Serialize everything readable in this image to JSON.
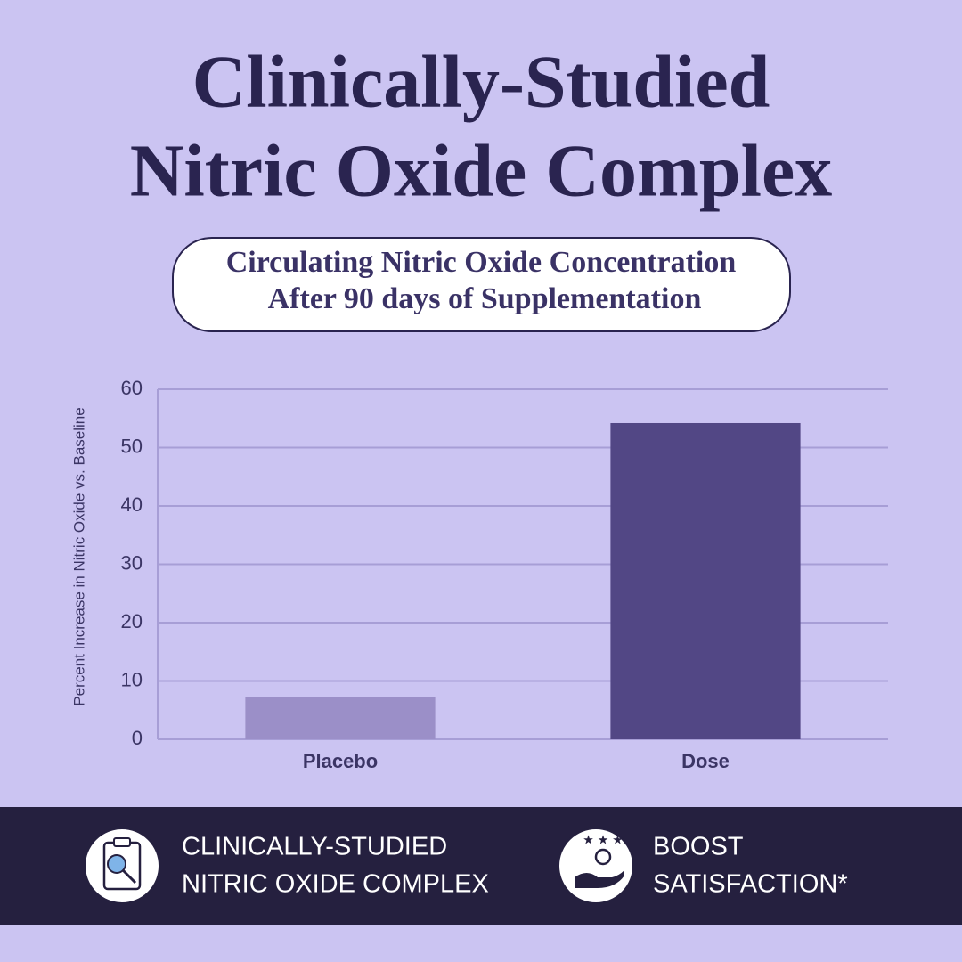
{
  "chart_data": {
    "type": "bar",
    "title": [
      "Clinically-Studied",
      "Nitric Oxide Complex"
    ],
    "subtitle": [
      "Circulating Nitric Oxide Concentration",
      "After 90 days of Supplementation"
    ],
    "y_label": "Percent Increase in Nitric Oxide vs. Baseline",
    "categories": [
      "Placebo",
      "Dose"
    ],
    "values": [
      7.3,
      54.2
    ],
    "colors": [
      "#9b8fc8",
      "#524785"
    ],
    "ylim": [
      0,
      60
    ],
    "yticks": [
      0,
      10,
      20,
      30,
      40,
      50,
      60
    ],
    "grid": true
  },
  "features": [
    {
      "lines": [
        "CLINICALLY-STUDIED",
        "NITRIC OXIDE COMPLEX"
      ]
    },
    {
      "lines": [
        "BOOST",
        "SATISFACTION*"
      ]
    }
  ]
}
